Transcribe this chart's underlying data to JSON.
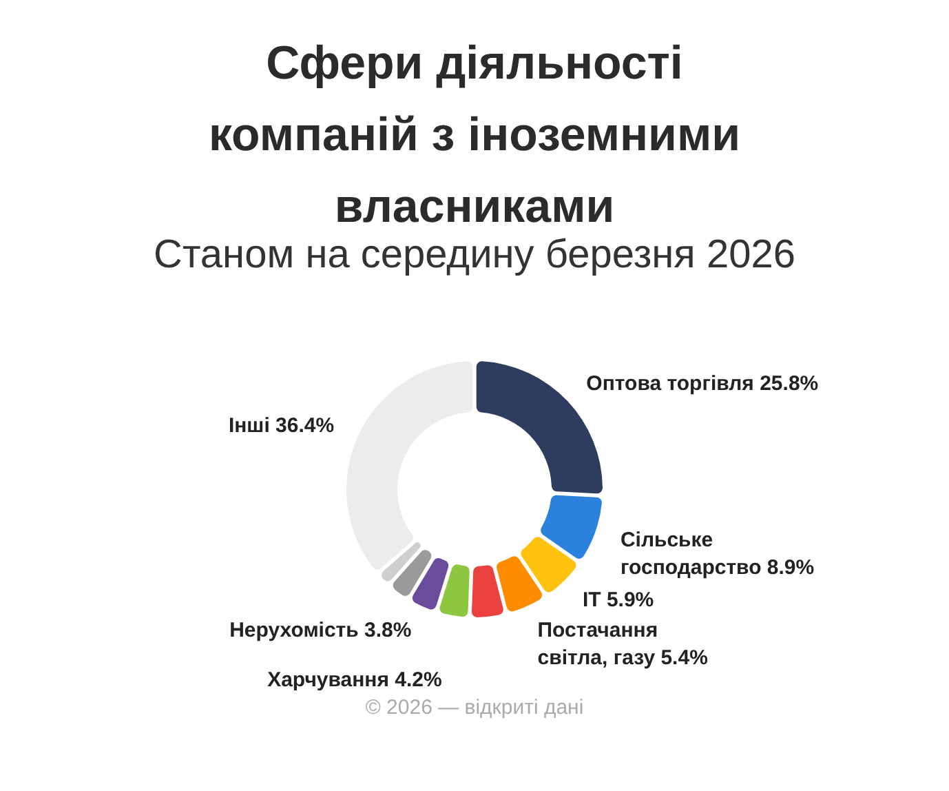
{
  "chart_data": {
    "type": "donut",
    "title": "Сфери діяльності компаній з іноземними власниками",
    "subtitle": "Станом на середину березня 2026",
    "categories": [
      "Оптова торгівля",
      "Сільське господарство",
      "IT",
      "Постачання світла, газу",
      null,
      "Харчування",
      "Нерухомість",
      null,
      null,
      "Інші"
    ],
    "values": [
      25.8,
      8.9,
      5.9,
      5.4,
      4.6,
      4.2,
      3.8,
      3.0,
      2.0,
      36.4
    ],
    "value_labels": [
      "25.8%",
      "8.9%",
      "5.9%",
      "5.4%",
      null,
      "4.2%",
      "3.8%",
      null,
      null,
      "36.4%"
    ],
    "colors": [
      "#2d3c5f",
      "#2b82dc",
      "#ffc20e",
      "#ff8c00",
      "#e8413e",
      "#8dc63f",
      "#6a4c9c",
      "#9a9a9a",
      "#cfcfcf",
      "#ececec"
    ],
    "legend": false,
    "annotations": [
      "© 2026 — відкриті дані"
    ]
  }
}
